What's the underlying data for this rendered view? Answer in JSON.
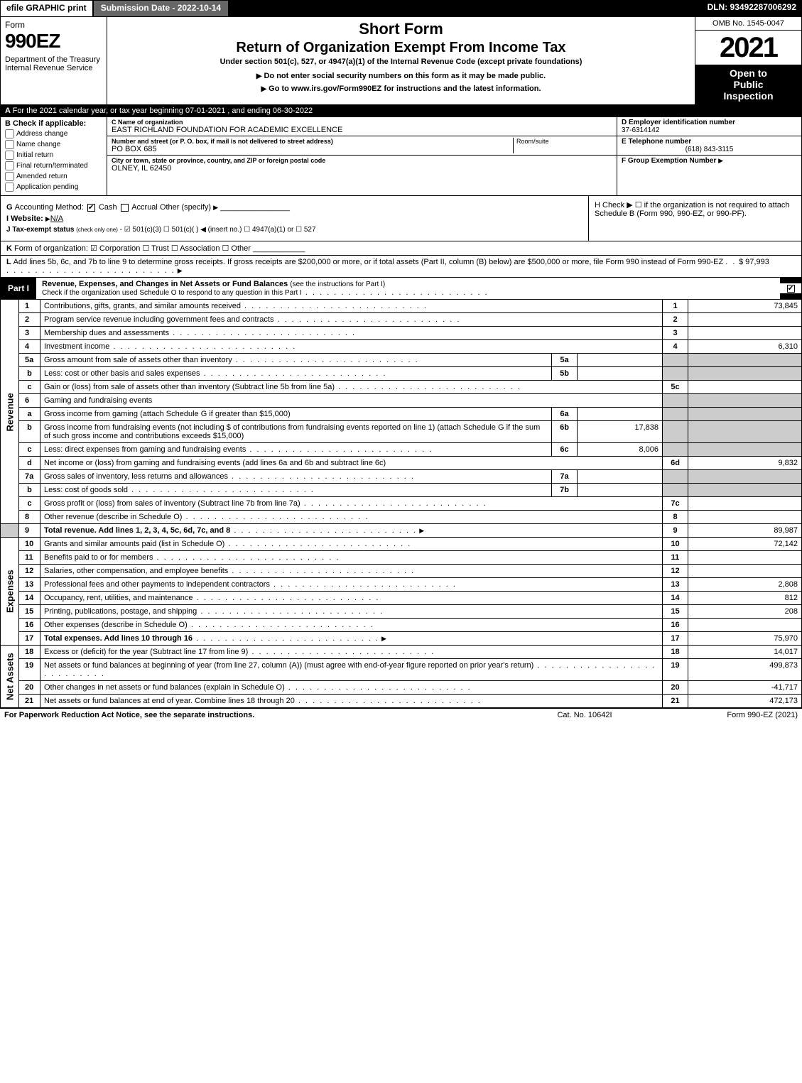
{
  "top": {
    "efile": "efile GRAPHIC print",
    "submission": "Submission Date - 2022-10-14",
    "dln": "DLN: 93492287006292"
  },
  "header": {
    "formword": "Form",
    "formnum": "990EZ",
    "dept": "Department of the Treasury\nInternal Revenue Service",
    "shortform": "Short Form",
    "maintitle": "Return of Organization Exempt From Income Tax",
    "subtitle1": "Under section 501(c), 527, or 4947(a)(1) of the Internal Revenue Code (except private foundations)",
    "subtitle2": "Do not enter social security numbers on this form as it may be made public.",
    "subtitle3": "Go to www.irs.gov/Form990EZ for instructions and the latest information.",
    "omb": "OMB No. 1545-0047",
    "year": "2021",
    "inspection": "Open to\nPublic\nInspection"
  },
  "row_a": {
    "text": "For the 2021 calendar year, or tax year beginning 07-01-2021 , and ending 06-30-2022"
  },
  "section_b": {
    "header": "Check if applicable:",
    "items": [
      "Address change",
      "Name change",
      "Initial return",
      "Final return/terminated",
      "Amended return",
      "Application pending"
    ]
  },
  "section_c": {
    "name_label": "Name of organization",
    "name": "EAST RICHLAND FOUNDATION FOR ACADEMIC EXCELLENCE",
    "addr_label": "Number and street (or P. O. box, if mail is not delivered to street address)",
    "addr": "PO BOX 685",
    "room_label": "Room/suite",
    "city_label": "City or town, state or province, country, and ZIP or foreign postal code",
    "city": "OLNEY, IL  62450"
  },
  "section_d": {
    "ein_label": "Employer identification number",
    "ein": "37-6314142",
    "phone_label": "Telephone number",
    "phone": "(618) 843-3115",
    "group_label": "Group Exemption Number"
  },
  "section_g": {
    "label": "Accounting Method:",
    "options": [
      "Cash",
      "Accrual",
      "Other (specify)"
    ]
  },
  "section_h": {
    "text": "Check ▶  ☐  if the organization is not required to attach Schedule B (Form 990, 990-EZ, or 990-PF)."
  },
  "section_i": {
    "label": "Website:",
    "value": "N/A"
  },
  "section_j": {
    "label": "Tax-exempt status",
    "sub": "(check only one)",
    "text": "☑ 501(c)(3)  ☐ 501(c)(  ) ◀ (insert no.)  ☐ 4947(a)(1) or  ☐ 527"
  },
  "section_k": {
    "label": "Form of organization:",
    "text": "☑ Corporation  ☐ Trust  ☐ Association  ☐ Other"
  },
  "section_l": {
    "text": "Add lines 5b, 6c, and 7b to line 9 to determine gross receipts. If gross receipts are $200,000 or more, or if total assets (Part II, column (B) below) are $500,000 or more, file Form 990 instead of Form 990-EZ",
    "amount": "$ 97,993"
  },
  "part1": {
    "label": "Part I",
    "title": "Revenue, Expenses, and Changes in Net Assets or Fund Balances",
    "sub": "(see the instructions for Part I)",
    "checkline": "Check if the organization used Schedule O to respond to any question in this Part I"
  },
  "sidelabels": {
    "revenue": "Revenue",
    "expenses": "Expenses",
    "netassets": "Net Assets"
  },
  "lines": {
    "1": {
      "desc": "Contributions, gifts, grants, and similar amounts received",
      "out": "1",
      "val": "73,845"
    },
    "2": {
      "desc": "Program service revenue including government fees and contracts",
      "out": "2",
      "val": ""
    },
    "3": {
      "desc": "Membership dues and assessments",
      "out": "3",
      "val": ""
    },
    "4": {
      "desc": "Investment income",
      "out": "4",
      "val": "6,310"
    },
    "5a": {
      "desc": "Gross amount from sale of assets other than inventory",
      "in": "5a",
      "inval": ""
    },
    "5b": {
      "desc": "Less: cost or other basis and sales expenses",
      "in": "5b",
      "inval": ""
    },
    "5c": {
      "desc": "Gain or (loss) from sale of assets other than inventory (Subtract line 5b from line 5a)",
      "out": "5c",
      "val": ""
    },
    "6": {
      "desc": "Gaming and fundraising events"
    },
    "6a": {
      "desc": "Gross income from gaming (attach Schedule G if greater than $15,000)",
      "in": "6a",
      "inval": ""
    },
    "6b": {
      "desc": "Gross income from fundraising events (not including $                          of contributions from fundraising events reported on line 1) (attach Schedule G if the sum of such gross income and contributions exceeds $15,000)",
      "in": "6b",
      "inval": "17,838"
    },
    "6c": {
      "desc": "Less: direct expenses from gaming and fundraising events",
      "in": "6c",
      "inval": "8,006"
    },
    "6d": {
      "desc": "Net income or (loss) from gaming and fundraising events (add lines 6a and 6b and subtract line 6c)",
      "out": "6d",
      "val": "9,832"
    },
    "7a": {
      "desc": "Gross sales of inventory, less returns and allowances",
      "in": "7a",
      "inval": ""
    },
    "7b": {
      "desc": "Less: cost of goods sold",
      "in": "7b",
      "inval": ""
    },
    "7c": {
      "desc": "Gross profit or (loss) from sales of inventory (Subtract line 7b from line 7a)",
      "out": "7c",
      "val": ""
    },
    "8": {
      "desc": "Other revenue (describe in Schedule O)",
      "out": "8",
      "val": ""
    },
    "9": {
      "desc": "Total revenue. Add lines 1, 2, 3, 4, 5c, 6d, 7c, and 8",
      "out": "9",
      "val": "89,987",
      "bold": true
    },
    "10": {
      "desc": "Grants and similar amounts paid (list in Schedule O)",
      "out": "10",
      "val": "72,142"
    },
    "11": {
      "desc": "Benefits paid to or for members",
      "out": "11",
      "val": ""
    },
    "12": {
      "desc": "Salaries, other compensation, and employee benefits",
      "out": "12",
      "val": ""
    },
    "13": {
      "desc": "Professional fees and other payments to independent contractors",
      "out": "13",
      "val": "2,808"
    },
    "14": {
      "desc": "Occupancy, rent, utilities, and maintenance",
      "out": "14",
      "val": "812"
    },
    "15": {
      "desc": "Printing, publications, postage, and shipping",
      "out": "15",
      "val": "208"
    },
    "16": {
      "desc": "Other expenses (describe in Schedule O)",
      "out": "16",
      "val": ""
    },
    "17": {
      "desc": "Total expenses. Add lines 10 through 16",
      "out": "17",
      "val": "75,970",
      "bold": true
    },
    "18": {
      "desc": "Excess or (deficit) for the year (Subtract line 17 from line 9)",
      "out": "18",
      "val": "14,017"
    },
    "19": {
      "desc": "Net assets or fund balances at beginning of year (from line 27, column (A)) (must agree with end-of-year figure reported on prior year's return)",
      "out": "19",
      "val": "499,873"
    },
    "20": {
      "desc": "Other changes in net assets or fund balances (explain in Schedule O)",
      "out": "20",
      "val": "-41,717"
    },
    "21": {
      "desc": "Net assets or fund balances at end of year. Combine lines 18 through 20",
      "out": "21",
      "val": "472,173"
    }
  },
  "footer": {
    "left": "For Paperwork Reduction Act Notice, see the separate instructions.",
    "mid": "Cat. No. 10642I",
    "right": "Form 990-EZ (2021)"
  },
  "colors": {
    "black": "#000000",
    "grey": "#cccccc",
    "darkgrey": "#666666"
  }
}
